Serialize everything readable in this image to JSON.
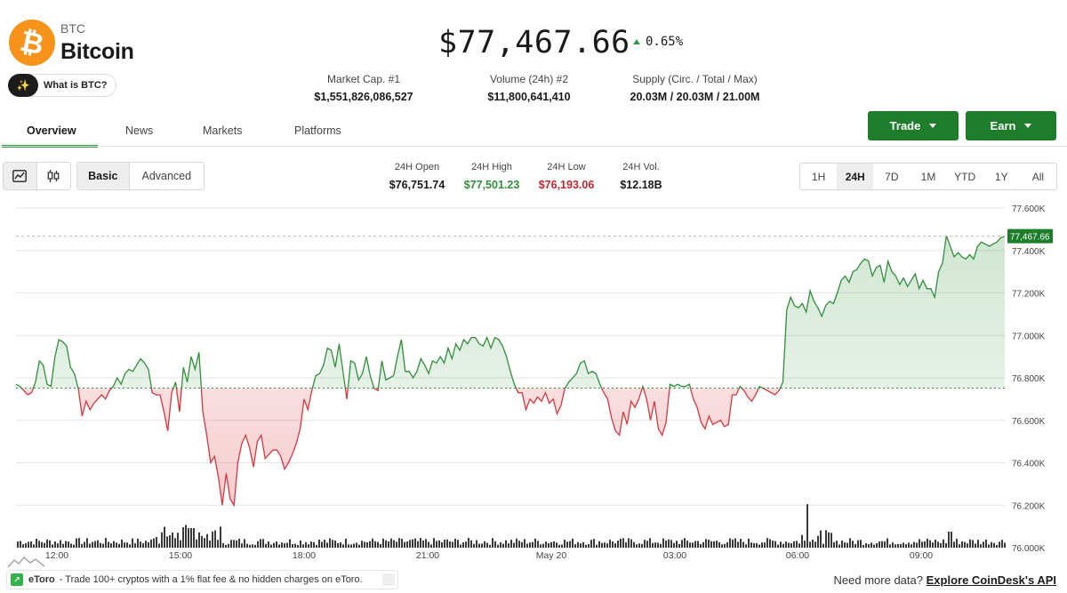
{
  "coin": {
    "symbol": "BTC",
    "name": "Bitcoin",
    "logo_glyph": "₿",
    "logo_color": "#f7931a",
    "what_is_label": "What is BTC?",
    "what_is_icon": "sparkle-icon"
  },
  "price": {
    "value": "$77,467.66",
    "change": "0.65%",
    "direction": "up"
  },
  "stats": [
    {
      "label": "Market Cap. #1",
      "value": "$1,551,826,086,527"
    },
    {
      "label": "Volume (24h) #2",
      "value": "$11,800,641,410"
    },
    {
      "label": "Supply (Circ. / Total / Max)",
      "value": "20.03M / 20.03M / 21.00M"
    }
  ],
  "tabs": [
    {
      "label": "Overview",
      "active": true
    },
    {
      "label": "News",
      "active": false
    },
    {
      "label": "Markets",
      "active": false
    },
    {
      "label": "Platforms",
      "active": false
    }
  ],
  "actions": {
    "trade_label": "Trade",
    "earn_label": "Earn",
    "accent_color": "#1e7d2a"
  },
  "chart_type_toggle": {
    "icons": [
      "line-chart-icon",
      "candlestick-icon"
    ],
    "active": "line"
  },
  "mode_toggle": {
    "options": [
      "Basic",
      "Advanced"
    ],
    "active": "Basic"
  },
  "ohlc": [
    {
      "label": "24H Open",
      "value": "$76,751.74",
      "color": "#1a1a1a"
    },
    {
      "label": "24H High",
      "value": "$77,501.23",
      "color": "#2f8f3a"
    },
    {
      "label": "24H Low",
      "value": "$76,193.06",
      "color": "#c0262d"
    },
    {
      "label": "24H Vol.",
      "value": "$12.18B",
      "color": "#1a1a1a"
    }
  ],
  "ranges": {
    "options": [
      "1H",
      "24H",
      "7D",
      "1M",
      "YTD",
      "1Y",
      "All"
    ],
    "active": "24H"
  },
  "chart_data": {
    "type": "area",
    "x_labels": [
      "12:00",
      "15:00",
      "18:00",
      "21:00",
      "May 20",
      "03:00",
      "06:00",
      "09:00"
    ],
    "y_ticks": [
      "77.600K",
      "77.400K",
      "77.200K",
      "77.000K",
      "76.800K",
      "76.600K",
      "76.400K",
      "76.200K",
      "76.000K"
    ],
    "ylim": [
      76000,
      77600
    ],
    "baseline": 76751.74,
    "current_label": "77,467.66",
    "current_value": 77467.66,
    "up_color": "#2f8f3a",
    "down_color": "#d9363e",
    "values": [
      76770,
      76760,
      76740,
      76720,
      76730,
      76780,
      76880,
      76860,
      76770,
      76760,
      76900,
      76980,
      76970,
      76950,
      76850,
      76820,
      76750,
      76620,
      76690,
      76650,
      76680,
      76700,
      76720,
      76700,
      76740,
      76760,
      76800,
      76770,
      76820,
      76840,
      76830,
      76860,
      76890,
      76870,
      76840,
      76730,
      76720,
      76720,
      76640,
      76550,
      76730,
      76780,
      76640,
      76850,
      76780,
      76900,
      76840,
      76920,
      76640,
      76530,
      76400,
      76430,
      76330,
      76200,
      76350,
      76230,
      76200,
      76400,
      76490,
      76530,
      76470,
      76380,
      76500,
      76530,
      76420,
      76440,
      76460,
      76460,
      76430,
      76370,
      76400,
      76440,
      76490,
      76560,
      76700,
      76650,
      76740,
      76810,
      76820,
      76860,
      76940,
      76930,
      76850,
      76960,
      76830,
      76700,
      76880,
      76870,
      76790,
      76820,
      76900,
      76810,
      76750,
      76740,
      76880,
      76790,
      76800,
      76810,
      76900,
      76980,
      76830,
      76830,
      76800,
      76830,
      76890,
      76860,
      76820,
      76880,
      76870,
      76900,
      76870,
      76940,
      76890,
      76960,
      76930,
      76980,
      76960,
      76990,
      76990,
      76960,
      76950,
      76990,
      76940,
      76990,
      76980,
      76950,
      76900,
      76830,
      76770,
      76730,
      76730,
      76650,
      76700,
      76680,
      76710,
      76690,
      76730,
      76680,
      76700,
      76630,
      76670,
      76750,
      76780,
      76800,
      76820,
      76870,
      76880,
      76820,
      76830,
      76820,
      76770,
      76730,
      76700,
      76610,
      76550,
      76530,
      76640,
      76580,
      76690,
      76660,
      76700,
      76760,
      76700,
      76600,
      76690,
      76560,
      76530,
      76590,
      76770,
      76760,
      76770,
      76760,
      76760,
      76770,
      76700,
      76660,
      76590,
      76560,
      76620,
      76580,
      76590,
      76600,
      76570,
      76580,
      76720,
      76720,
      76760,
      76740,
      76710,
      76690,
      76720,
      76760,
      76750,
      76740,
      76730,
      76720,
      76740,
      76780,
      77120,
      77180,
      77140,
      77130,
      77150,
      77110,
      77210,
      77160,
      77130,
      77090,
      77140,
      77160,
      77150,
      77200,
      77260,
      77280,
      77250,
      77300,
      77310,
      77340,
      77360,
      77350,
      77280,
      77320,
      77330,
      77250,
      77350,
      77300,
      77280,
      77240,
      77270,
      77230,
      77260,
      77290,
      77220,
      77260,
      77220,
      77220,
      77180,
      77300,
      77340,
      77470,
      77420,
      77370,
      77390,
      77370,
      77360,
      77380,
      77360,
      77420,
      77440,
      77430,
      77420,
      77430,
      77440,
      77460,
      77467
    ]
  },
  "ad": {
    "brand": "eToro",
    "text": "- Trade 100+ cryptos with a 1% flat fee & no hidden charges on eToro."
  },
  "footer": {
    "api_prompt": "Need more data?",
    "api_link": "Explore CoinDesk's API"
  }
}
